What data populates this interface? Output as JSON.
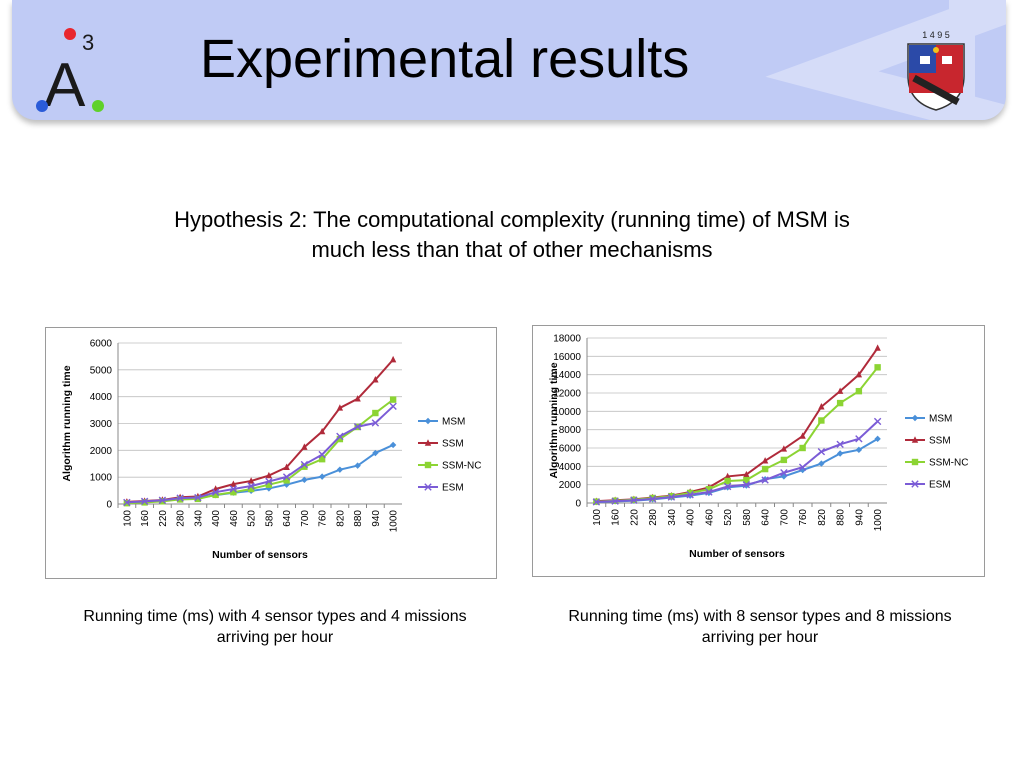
{
  "header": {
    "title": "Experimental results",
    "logo_text": "A",
    "logo_sup": "3",
    "crest_year": "1 4 9 5",
    "banner_color": "#c0cbf5"
  },
  "hypothesis": {
    "line1": "Hypothesis 2: The computational complexity (running time) of MSM is",
    "line2": "much less than that of other mechanisms"
  },
  "captions": {
    "left_line1": "Running time (ms) with 4 sensor types and 4 missions",
    "left_line2": "arriving per hour",
    "right_line1": "Running time (ms) with 8 sensor types and 8 missions",
    "right_line2": "arriving per hour"
  },
  "chart_data": [
    {
      "type": "line",
      "title": "",
      "xlabel": "Number of sensors",
      "ylabel": "Algorithm running time",
      "categories": [
        "100",
        "160",
        "220",
        "280",
        "340",
        "400",
        "460",
        "520",
        "580",
        "640",
        "700",
        "760",
        "820",
        "880",
        "940",
        "1000"
      ],
      "ylim": [
        0,
        6000
      ],
      "yticks": [
        0,
        1000,
        2000,
        3000,
        4000,
        5000,
        6000
      ],
      "legend": "right",
      "grid": true,
      "series": [
        {
          "name": "MSM",
          "color": "#4a90d9",
          "marker": "diamond",
          "values": [
            50,
            80,
            120,
            180,
            220,
            330,
            420,
            490,
            580,
            720,
            900,
            1020,
            1280,
            1430,
            1900,
            2200
          ]
        },
        {
          "name": "SSM",
          "color": "#b02a3a",
          "marker": "triangle",
          "values": [
            80,
            110,
            150,
            250,
            280,
            560,
            740,
            860,
            1060,
            1370,
            2120,
            2700,
            3580,
            3920,
            4630,
            5380
          ]
        },
        {
          "name": "SSM-NC",
          "color": "#8cd433",
          "marker": "square",
          "values": [
            30,
            60,
            100,
            170,
            190,
            340,
            440,
            560,
            720,
            880,
            1390,
            1670,
            2420,
            2870,
            3390,
            3890
          ]
        },
        {
          "name": "ESM",
          "color": "#7b5cd6",
          "marker": "x",
          "values": [
            60,
            100,
            140,
            220,
            240,
            440,
            560,
            670,
            840,
            1010,
            1470,
            1840,
            2520,
            2880,
            3020,
            3640
          ]
        }
      ]
    },
    {
      "type": "line",
      "title": "",
      "xlabel": "Number of sensors",
      "ylabel": "Algorithm running time",
      "categories": [
        "100",
        "160",
        "220",
        "280",
        "340",
        "400",
        "460",
        "520",
        "580",
        "640",
        "700",
        "760",
        "820",
        "880",
        "940",
        "1000"
      ],
      "ylim": [
        0,
        18000
      ],
      "yticks": [
        0,
        2000,
        4000,
        6000,
        8000,
        10000,
        12000,
        14000,
        16000,
        18000
      ],
      "legend": "right",
      "grid": true,
      "series": [
        {
          "name": "MSM",
          "color": "#4a90d9",
          "marker": "diamond",
          "values": [
            100,
            180,
            250,
            400,
            600,
            800,
            1100,
            1700,
            1900,
            2600,
            2900,
            3600,
            4300,
            5400,
            5800,
            7000
          ]
        },
        {
          "name": "SSM",
          "color": "#b02a3a",
          "marker": "triangle",
          "values": [
            200,
            300,
            400,
            600,
            800,
            1200,
            1700,
            2900,
            3100,
            4600,
            5900,
            7300,
            10500,
            12200,
            14000,
            16900
          ]
        },
        {
          "name": "SSM-NC",
          "color": "#8cd433",
          "marker": "square",
          "values": [
            150,
            250,
            350,
            550,
            750,
            1100,
            1500,
            2400,
            2500,
            3700,
            4700,
            6000,
            9000,
            10900,
            12200,
            14800
          ]
        },
        {
          "name": "ESM",
          "color": "#7b5cd6",
          "marker": "x",
          "values": [
            120,
            200,
            300,
            450,
            650,
            900,
            1200,
            1800,
            2000,
            2500,
            3300,
            3900,
            5600,
            6400,
            7000,
            8900
          ]
        }
      ]
    }
  ]
}
